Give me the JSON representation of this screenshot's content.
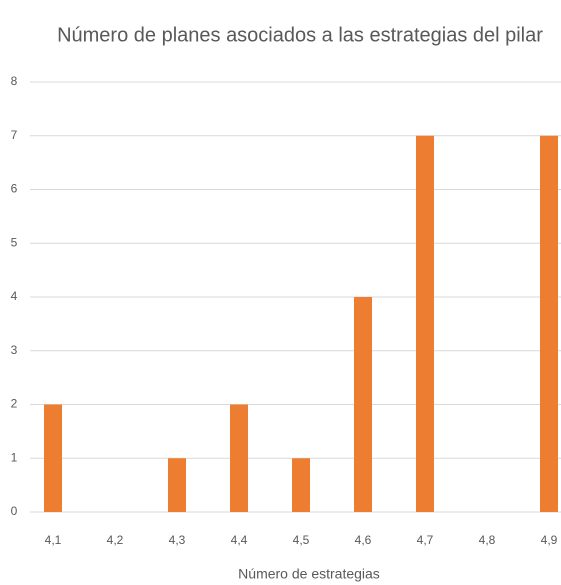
{
  "chart_data": {
    "type": "bar",
    "title": "Número de planes asociados a las estrategias del pilar",
    "x_label": "Número de estrategias",
    "categories": [
      "4,1",
      "4,2",
      "4,3",
      "4,4",
      "4,5",
      "4,6",
      "4,7",
      "4,8",
      "4,9"
    ],
    "values": [
      2,
      0,
      1,
      2,
      1,
      4,
      7,
      0,
      7
    ],
    "color": "#ed7d31",
    "ylim": [
      0,
      8
    ],
    "yticks": [
      0,
      1,
      2,
      3,
      4,
      5,
      6,
      7,
      8
    ],
    "grid": true
  }
}
